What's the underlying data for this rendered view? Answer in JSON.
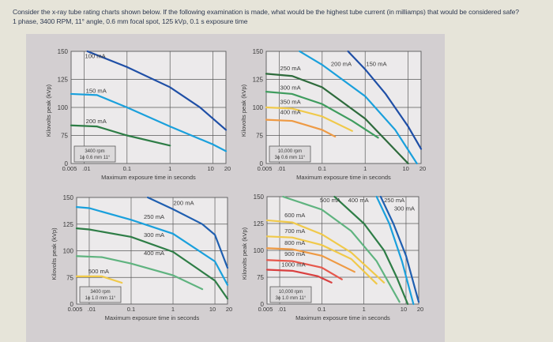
{
  "question": {
    "line1": "Consider the x-ray tube rating charts shown below. If the following examination is made, what would be the highest tube current (in milliamps) that would be considered safe?",
    "line2": "1 phase, 3400 RPM, 11° angle, 0.6 mm focal spot, 125 kVp, 0.1 s exposure time"
  },
  "colors": {
    "page_bg": "#e6e4d9",
    "panel_bg": "#d3cfd1",
    "plot_bg": "#eceaeb",
    "grid": "#5a5a5a"
  },
  "chart_data": [
    {
      "type": "line",
      "id": "top-left",
      "title": "",
      "xlabel": "Maximum exposure time in seconds",
      "ylabel": "Kilovolts peak (kVp)",
      "x_scale": "log",
      "x_ticks": [
        "0.005",
        ".01",
        "0.1",
        "1",
        "10",
        "20"
      ],
      "y_ticks": [
        "0",
        "75",
        "100",
        "125",
        "150"
      ],
      "xlim": [
        0.005,
        20
      ],
      "ylim": [
        50,
        150
      ],
      "box": [
        "3400 rpm",
        "1ϕ 0.6 mm 11°"
      ],
      "series": [
        {
          "name": "100 mA",
          "color": "#1f4fa6",
          "points": [
            [
              0.012,
              150
            ],
            [
              0.1,
              136
            ],
            [
              1,
              118
            ],
            [
              5,
              100
            ],
            [
              20,
              80
            ]
          ],
          "label_at": [
            0.0105,
            144
          ]
        },
        {
          "name": "150 mA",
          "color": "#1aa0dc",
          "points": [
            [
              0.005,
              112
            ],
            [
              0.02,
              111
            ],
            [
              0.1,
              100
            ],
            [
              1,
              83
            ],
            [
              10,
              67
            ],
            [
              20,
              61
            ]
          ],
          "label_at": [
            0.011,
            113
          ]
        },
        {
          "name": "200 mA",
          "color": "#2e7d46",
          "points": [
            [
              0.005,
              84
            ],
            [
              0.02,
              83
            ],
            [
              0.1,
              75
            ],
            [
              1,
              66
            ]
          ],
          "label_at": [
            0.011,
            86
          ]
        }
      ]
    },
    {
      "type": "line",
      "id": "top-right",
      "title": "",
      "xlabel": "Maximum exposure time in seconds",
      "ylabel": "Kilovolts peak (kVp)",
      "x_scale": "log",
      "x_ticks": [
        "0.005",
        ".01",
        "0.1",
        "1",
        "10",
        "20"
      ],
      "y_ticks": [
        "0",
        "75",
        "100",
        "125",
        "150"
      ],
      "xlim": [
        0.005,
        20
      ],
      "ylim": [
        50,
        150
      ],
      "box": [
        "10,000 rpm",
        "3ϕ 0.6 mm 11°"
      ],
      "series": [
        {
          "name": "150 mA",
          "color": "#1f4fa6",
          "points": [
            [
              0.4,
              150
            ],
            [
              1,
              134
            ],
            [
              3,
              112
            ],
            [
              10,
              83
            ],
            [
              20,
              63
            ]
          ],
          "label_at": [
            1.05,
            137
          ]
        },
        {
          "name": "200 mA",
          "color": "#1aa0dc",
          "points": [
            [
              0.03,
              150
            ],
            [
              0.1,
              138
            ],
            [
              1,
              110
            ],
            [
              5,
              80
            ],
            [
              16,
              50
            ]
          ],
          "label_at": [
            0.16,
            137
          ]
        },
        {
          "name": "250 mA",
          "color": "#2e6b3c",
          "points": [
            [
              0.005,
              130
            ],
            [
              0.02,
              128
            ],
            [
              0.1,
              118
            ],
            [
              1,
              90
            ],
            [
              10,
              50
            ]
          ],
          "label_at": [
            0.0105,
            133
          ]
        },
        {
          "name": "300 mA",
          "color": "#3f9c5e",
          "points": [
            [
              0.005,
              114
            ],
            [
              0.02,
              112
            ],
            [
              0.1,
              103
            ],
            [
              0.5,
              88
            ],
            [
              2,
              73
            ]
          ],
          "label_at": [
            0.0105,
            116
          ]
        },
        {
          "name": "350 mA",
          "color": "#f0c94a",
          "points": [
            [
              0.005,
              100
            ],
            [
              0.02,
              99
            ],
            [
              0.1,
              92
            ],
            [
              0.5,
              79
            ]
          ],
          "label_at": [
            0.0105,
            103
          ]
        },
        {
          "name": "400 mA",
          "color": "#ee9a44",
          "points": [
            [
              0.005,
              89
            ],
            [
              0.02,
              88
            ],
            [
              0.1,
              80
            ],
            [
              0.2,
              74
            ]
          ],
          "label_at": [
            0.0105,
            94
          ]
        }
      ]
    },
    {
      "type": "line",
      "id": "bottom-left",
      "title": "",
      "xlabel": "Maximum exposure time in seconds",
      "ylabel": "Kilovolts peak (kVp)",
      "x_scale": "log",
      "x_ticks": [
        "0.005",
        ".01",
        "0.1",
        "1",
        "10",
        "20"
      ],
      "y_ticks": [
        "0",
        "75",
        "100",
        "125",
        "150"
      ],
      "xlim": [
        0.005,
        20
      ],
      "ylim": [
        50,
        150
      ],
      "box": [
        "3400 rpm",
        "1ϕ 1.0 mm 11°"
      ],
      "series": [
        {
          "name": "200 mA",
          "color": "#1f5fb0",
          "points": [
            [
              0.25,
              150
            ],
            [
              1,
              139
            ],
            [
              5,
              125
            ],
            [
              10,
              115
            ],
            [
              20,
              84
            ]
          ],
          "label_at": [
            1.02,
            143
          ]
        },
        {
          "name": "250 mA",
          "color": "#1aa0dc",
          "points": [
            [
              0.005,
              141
            ],
            [
              0.01,
              140
            ],
            [
              0.1,
              129
            ],
            [
              1,
              116
            ],
            [
              10,
              90
            ],
            [
              20,
              68
            ]
          ],
          "label_at": [
            0.2,
            130
          ]
        },
        {
          "name": "300 mA",
          "color": "#2e7d46",
          "points": [
            [
              0.005,
              121
            ],
            [
              0.01,
              120
            ],
            [
              0.1,
              113
            ],
            [
              1,
              99
            ],
            [
              10,
              72
            ],
            [
              20,
              55
            ]
          ],
          "label_at": [
            0.2,
            113
          ]
        },
        {
          "name": "400 mA",
          "color": "#5fb37f",
          "points": [
            [
              0.005,
              95
            ],
            [
              0.02,
              94
            ],
            [
              0.1,
              88
            ],
            [
              1,
              77
            ],
            [
              5,
              64
            ]
          ],
          "label_at": [
            0.2,
            96
          ]
        },
        {
          "name": "500 mA",
          "color": "#f0c94a",
          "points": [
            [
              0.005,
              76
            ],
            [
              0.02,
              76
            ],
            [
              0.06,
              70
            ]
          ],
          "label_at": [
            0.0095,
            79
          ]
        }
      ]
    },
    {
      "type": "line",
      "id": "bottom-right",
      "title": "",
      "xlabel": "Maximum exposure time in seconds",
      "ylabel": "Kilovolts peak (kVp)",
      "x_scale": "log",
      "x_ticks": [
        "0.005",
        ".01",
        "0.1",
        "1",
        "10",
        "20"
      ],
      "y_ticks": [
        "0",
        "75",
        "100",
        "125",
        "150"
      ],
      "xlim": [
        0.005,
        20
      ],
      "ylim": [
        50,
        150
      ],
      "box": [
        "10,000 rpm",
        "3ϕ 1.0 mm 11°"
      ],
      "series": [
        {
          "name": "250 mA",
          "color": "#1f5fb0",
          "points": [
            [
              2.5,
              150
            ],
            [
              5,
              125
            ],
            [
              10,
              95
            ],
            [
              20,
              52
            ]
          ],
          "label_at": [
            3,
            145
          ]
        },
        {
          "name": "300 mA",
          "color": "#1aa0dc",
          "points": [
            [
              2,
              150
            ],
            [
              4,
              125
            ],
            [
              8,
              90
            ],
            [
              15,
              50
            ]
          ],
          "label_at": [
            5.2,
            137
          ]
        },
        {
          "name": "400 mA",
          "color": "#2e7d46",
          "points": [
            [
              0.2,
              150
            ],
            [
              1,
              125
            ],
            [
              3,
              100
            ],
            [
              6,
              75
            ],
            [
              11,
              50
            ]
          ],
          "label_at": [
            0.42,
            145
          ]
        },
        {
          "name": "500 mA",
          "color": "#5fb37f",
          "points": [
            [
              0.012,
              150
            ],
            [
              0.1,
              138
            ],
            [
              0.5,
              118
            ],
            [
              2,
              90
            ],
            [
              7,
              52
            ]
          ],
          "label_at": [
            0.09,
            145
          ]
        },
        {
          "name": "600 mA",
          "color": "#f0c94a",
          "points": [
            [
              0.005,
              128
            ],
            [
              0.02,
              126
            ],
            [
              0.1,
              115
            ],
            [
              0.5,
              98
            ],
            [
              3,
              70
            ]
          ],
          "label_at": [
            0.013,
            131
          ]
        },
        {
          "name": "700 mA",
          "color": "#f0c94a",
          "points": [
            [
              0.005,
              113
            ],
            [
              0.02,
              112
            ],
            [
              0.1,
              105
            ],
            [
              0.5,
              92
            ],
            [
              2,
              69
            ]
          ],
          "label_at": [
            0.013,
            116
          ]
        },
        {
          "name": "800 mA",
          "color": "#ee9a44",
          "points": [
            [
              0.005,
              102
            ],
            [
              0.02,
              101
            ],
            [
              0.1,
              95
            ],
            [
              0.6,
              80
            ]
          ],
          "label_at": [
            0.013,
            105
          ]
        },
        {
          "name": "900 mA",
          "color": "#e6584d",
          "points": [
            [
              0.005,
              91
            ],
            [
              0.02,
              90
            ],
            [
              0.1,
              84
            ],
            [
              0.3,
              73
            ]
          ],
          "label_at": [
            0.013,
            95
          ]
        },
        {
          "name": "1000 mA",
          "color": "#d94040",
          "points": [
            [
              0.005,
              82
            ],
            [
              0.02,
              81
            ],
            [
              0.08,
              76
            ],
            [
              0.17,
              70
            ]
          ],
          "label_at": [
            0.011,
            85
          ]
        }
      ]
    }
  ]
}
